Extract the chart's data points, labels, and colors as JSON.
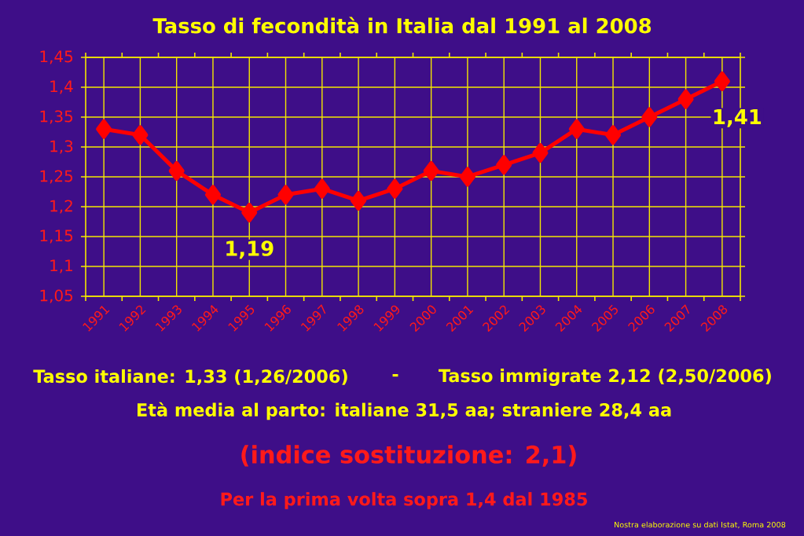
{
  "chart_data": {
    "type": "line",
    "title": "Tasso di fecondità in Italia dal 1991 al 2008",
    "categories": [
      "1991",
      "1992",
      "1993",
      "1994",
      "1995",
      "1996",
      "1997",
      "1998",
      "1999",
      "2000",
      "2001",
      "2002",
      "2003",
      "2004",
      "2005",
      "2006",
      "2007",
      "2008"
    ],
    "series": [
      {
        "color": "#ff0000",
        "values": [
          1.33,
          1.32,
          1.26,
          1.22,
          1.19,
          1.22,
          1.23,
          1.21,
          1.23,
          1.26,
          1.25,
          1.27,
          1.29,
          1.33,
          1.32,
          1.35,
          1.38,
          1.41
        ],
        "value_labels": [
          null,
          null,
          null,
          null,
          "1,19",
          null,
          null,
          null,
          null,
          null,
          null,
          null,
          null,
          null,
          null,
          null,
          null,
          "1,41"
        ]
      }
    ],
    "ylim": [
      1.05,
      1.45
    ],
    "yticks": [
      {
        "value": 1.05,
        "label": "1,05"
      },
      {
        "value": 1.1,
        "label": "1,1"
      },
      {
        "value": 1.15,
        "label": "1,15"
      },
      {
        "value": 1.2,
        "label": "1,2"
      },
      {
        "value": 1.25,
        "label": "1,25"
      },
      {
        "value": 1.3,
        "label": "1,3"
      },
      {
        "value": 1.35,
        "label": "1,35"
      },
      {
        "value": 1.4,
        "label": "1,4"
      },
      {
        "value": 1.45,
        "label": "1,45"
      }
    ],
    "grid": true,
    "marker": "diamond",
    "line_style": "solid",
    "annotations": [
      "Tasso italiane: 1,33 (1,26/2006)",
      "-",
      "Tasso immigrate 2,12 (2,50/2006)",
      "Età media al parto: italiane 31,5 aa; straniere 28,4 aa",
      "(indice sostituzione: 2,1)",
      "Per la prima volta sopra 1,4 dal 1985",
      "Nostra elaborazione su dati Istat, Roma 2008"
    ]
  }
}
